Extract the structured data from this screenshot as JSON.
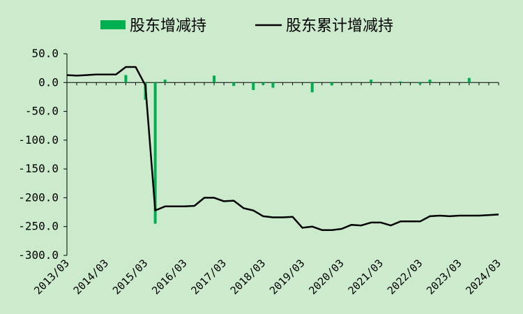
{
  "chart_data": {
    "type": "bar+line",
    "legend": [
      {
        "label": "股东增减持",
        "kind": "bar",
        "color": "#00b050"
      },
      {
        "label": "股东累计增减持",
        "kind": "line",
        "color": "#000000"
      }
    ],
    "legend_position": "top",
    "ylim": [
      -300,
      50
    ],
    "y_ticks": [
      "50.0",
      "0.0",
      "-50.0",
      "-100.0",
      "-150.0",
      "-200.0",
      "-250.0",
      "-300.0"
    ],
    "x_tick_labels": [
      "2013/03",
      "2014/03",
      "2015/03",
      "2016/03",
      "2017/03",
      "2018/03",
      "2019/03",
      "2020/03",
      "2021/03",
      "2022/03",
      "2023/03",
      "2024/03"
    ],
    "x": [
      "2013/03",
      "2013/06",
      "2013/09",
      "2013/12",
      "2014/03",
      "2014/06",
      "2014/09",
      "2014/12",
      "2015/03",
      "2015/06",
      "2015/09",
      "2015/12",
      "2016/03",
      "2016/06",
      "2016/09",
      "2016/12",
      "2017/03",
      "2017/06",
      "2017/09",
      "2017/12",
      "2018/03",
      "2018/06",
      "2018/09",
      "2018/12",
      "2019/03",
      "2019/06",
      "2019/09",
      "2019/12",
      "2020/03",
      "2020/06",
      "2020/09",
      "2020/12",
      "2021/03",
      "2021/06",
      "2021/09",
      "2021/12",
      "2022/03",
      "2022/06",
      "2022/09",
      "2022/12",
      "2023/03",
      "2023/06",
      "2023/09",
      "2023/12",
      "2024/03"
    ],
    "series": [
      {
        "name": "股东增减持",
        "type": "bar",
        "color": "#00b050",
        "values": [
          0,
          0,
          0,
          0,
          0,
          0,
          13,
          0,
          -30,
          -245,
          5,
          0,
          0,
          0,
          0,
          12,
          0,
          -6,
          0,
          -13,
          -4,
          -9,
          0,
          0,
          0,
          -17,
          0,
          -5,
          0,
          0,
          0,
          5,
          0,
          0,
          2,
          0,
          -3,
          5,
          0,
          0,
          0,
          8,
          0,
          0,
          0
        ]
      },
      {
        "name": "股东累计增减持",
        "type": "line",
        "color": "#000000",
        "values": [
          13,
          12,
          13,
          14,
          14,
          14,
          27,
          27,
          -5,
          -222,
          -215,
          -215,
          -215,
          -214,
          -200,
          -200,
          -206,
          -205,
          -218,
          -222,
          -232,
          -234,
          -234,
          -233,
          -252,
          -250,
          -256,
          -256,
          -254,
          -247,
          -248,
          -243,
          -243,
          -248,
          -241,
          -241,
          -241,
          -232,
          -231,
          -232,
          -231,
          -231,
          -231,
          -230,
          -229
        ]
      }
    ],
    "grid": false
  }
}
